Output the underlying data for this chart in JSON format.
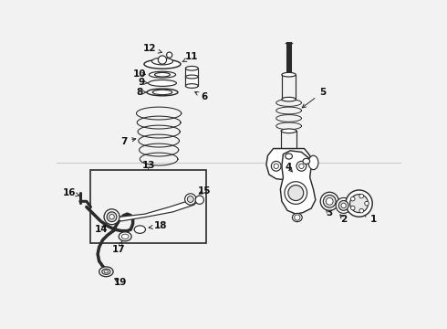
{
  "bg_color": "#f2f2f2",
  "lc": "#2a2a2a",
  "fs": 7.5,
  "lw": 0.85
}
